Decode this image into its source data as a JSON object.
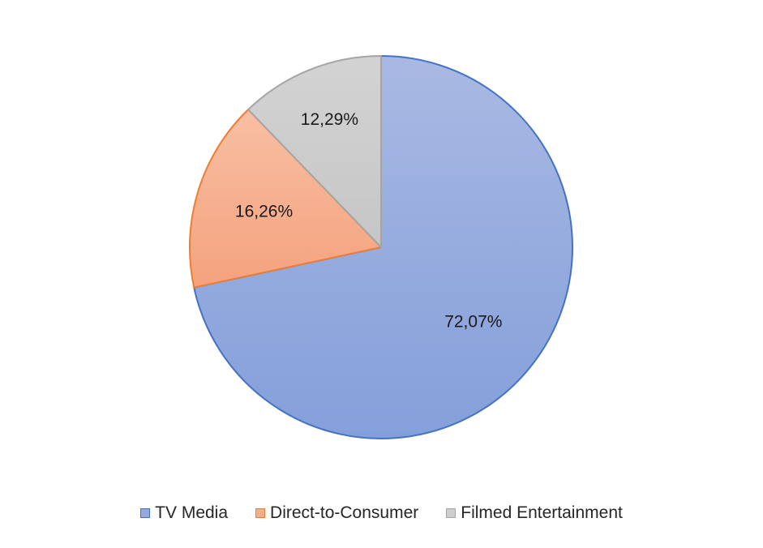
{
  "chart_data": {
    "type": "pie",
    "title": "",
    "categories": [
      "TV Media",
      "Direct-to-Consumer",
      "Filmed Entertainment"
    ],
    "values": [
      72.07,
      16.26,
      12.29
    ],
    "data_labels": [
      "72,07%",
      "16,26%",
      "12,29%"
    ],
    "colors": {
      "fills": [
        "#95A9DE",
        "#F5AD8A",
        "#CDCDCD"
      ],
      "strokes": [
        "#4472C4",
        "#ED7D31",
        "#A5A5A5"
      ]
    },
    "start_angle": "12 o'clock",
    "direction": "clockwise",
    "legend": {
      "position": "bottom",
      "items": [
        "TV Media",
        "Direct-to-Consumer",
        "Filmed Entertainment"
      ]
    }
  }
}
